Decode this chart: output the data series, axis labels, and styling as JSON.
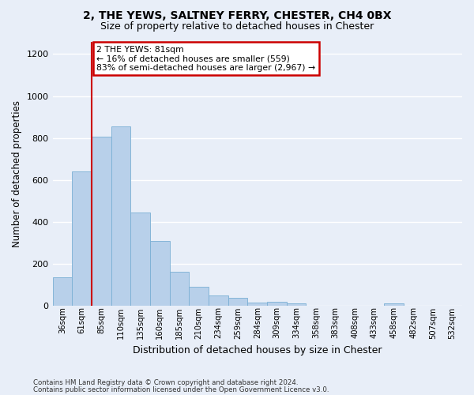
{
  "title1": "2, THE YEWS, SALTNEY FERRY, CHESTER, CH4 0BX",
  "title2": "Size of property relative to detached houses in Chester",
  "xlabel": "Distribution of detached houses by size in Chester",
  "ylabel": "Number of detached properties",
  "categories": [
    "36sqm",
    "61sqm",
    "85sqm",
    "110sqm",
    "135sqm",
    "160sqm",
    "185sqm",
    "210sqm",
    "234sqm",
    "259sqm",
    "284sqm",
    "309sqm",
    "334sqm",
    "358sqm",
    "383sqm",
    "408sqm",
    "433sqm",
    "458sqm",
    "482sqm",
    "507sqm",
    "532sqm"
  ],
  "values": [
    135,
    640,
    805,
    855,
    445,
    308,
    160,
    90,
    50,
    38,
    16,
    18,
    12,
    0,
    0,
    0,
    0,
    12,
    0,
    0,
    0
  ],
  "bar_color": "#b8d0ea",
  "bar_edge_color": "#7aafd4",
  "property_bar_index": 2,
  "annotation_text": "2 THE YEWS: 81sqm\n← 16% of detached houses are smaller (559)\n83% of semi-detached houses are larger (2,967) →",
  "annotation_box_facecolor": "#ffffff",
  "annotation_box_edge_color": "#cc0000",
  "redline_color": "#cc0000",
  "ylim_max": 1260,
  "yticks": [
    0,
    200,
    400,
    600,
    800,
    1000,
    1200
  ],
  "footnote1": "Contains HM Land Registry data © Crown copyright and database right 2024.",
  "footnote2": "Contains public sector information licensed under the Open Government Licence v3.0.",
  "bg_color": "#e8eef8",
  "grid_color": "#ffffff"
}
